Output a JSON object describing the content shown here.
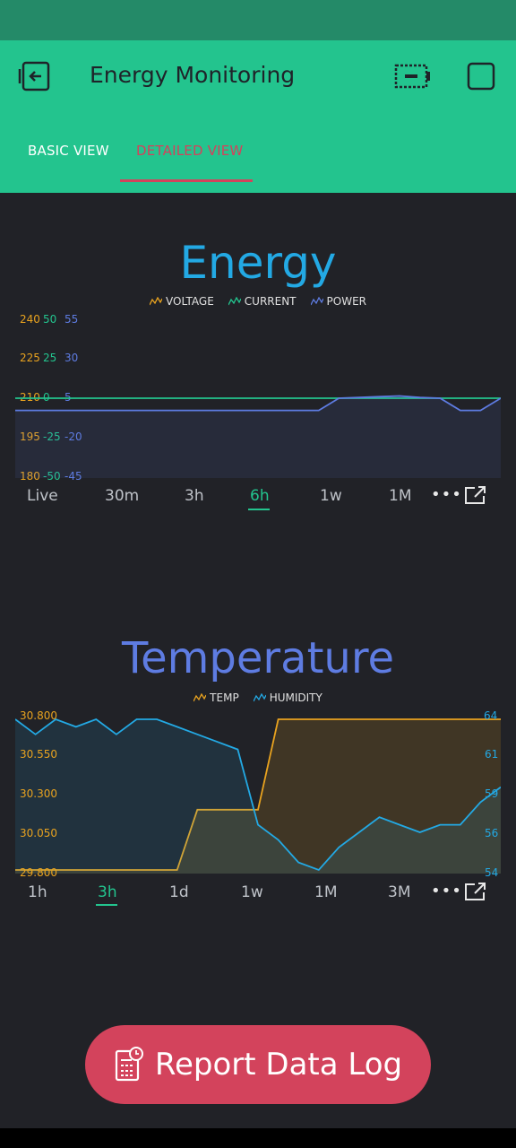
{
  "header": {
    "title": "Energy Monitoring",
    "tabs": [
      {
        "label": "BASIC VIEW",
        "active": false
      },
      {
        "label": "DETAILED VIEW",
        "active": true
      }
    ]
  },
  "colors": {
    "appbar": "#23c48e",
    "statusbar": "#248a68",
    "background": "#212227",
    "accent_red": "#d3435c",
    "voltage": "#e9a31f",
    "current": "#23c48e",
    "power": "#5e7ce2",
    "temp": "#e9a31f",
    "humidity": "#23a9e4"
  },
  "energy": {
    "title": "Energy",
    "legend": [
      "VOLTAGE",
      "CURRENT",
      "POWER"
    ],
    "ranges": [
      "Live",
      "30m",
      "3h",
      "6h",
      "1w",
      "1M"
    ],
    "active_range": "6h"
  },
  "temperature": {
    "title": "Temperature",
    "legend": [
      "TEMP",
      "HUMIDITY"
    ],
    "ranges": [
      "1h",
      "3h",
      "1d",
      "1w",
      "1M",
      "3M"
    ],
    "active_range": "3h"
  },
  "chart_data": [
    {
      "type": "line",
      "title": "Energy",
      "axes": {
        "voltage": {
          "ticks": [
            "240",
            "225",
            "210",
            "195",
            "180"
          ],
          "ylim": [
            180,
            240
          ]
        },
        "current": {
          "ticks": [
            "50",
            "25",
            "0",
            "-25",
            "-50"
          ],
          "ylim": [
            -50,
            50
          ]
        },
        "power": {
          "ticks": [
            "55",
            "30",
            "5",
            "-20",
            "-45"
          ],
          "ylim": [
            -45,
            55
          ]
        }
      },
      "series": [
        {
          "name": "VOLTAGE",
          "color": "#e9a31f",
          "values": [
            0,
            0,
            0,
            0,
            0,
            0,
            0,
            0,
            0,
            0,
            0,
            0,
            0,
            0,
            0,
            0,
            0,
            0,
            0,
            0,
            0,
            0,
            0,
            0,
            0
          ]
        },
        {
          "name": "CURRENT",
          "color": "#23c48e",
          "values": [
            0,
            0,
            0,
            0,
            0,
            0,
            0,
            0,
            0,
            0,
            0,
            0,
            0,
            0,
            0,
            0,
            0,
            0,
            0,
            0,
            0,
            0,
            0,
            0,
            0
          ]
        },
        {
          "name": "POWER",
          "color": "#5e7ce2",
          "values": [
            -3,
            -3,
            -3,
            -3,
            -3,
            -3,
            -3,
            -3,
            -3,
            -3,
            -3,
            -3,
            -3,
            -3,
            -3,
            -3,
            5,
            5.5,
            6,
            6.5,
            5.5,
            5,
            -3,
            -3,
            5
          ]
        }
      ]
    },
    {
      "type": "line",
      "title": "Temperature",
      "axes": {
        "temp": {
          "ticks": [
            "30.800",
            "30.550",
            "30.300",
            "30.050",
            "29.800"
          ],
          "ylim": [
            29.8,
            30.8
          ]
        },
        "humidity": {
          "ticks": [
            "64",
            "61",
            "59",
            "56",
            "54"
          ],
          "ylim": [
            54,
            64
          ]
        }
      },
      "series": [
        {
          "name": "TEMP",
          "color": "#e9a31f",
          "values": [
            29.8,
            29.8,
            29.8,
            29.8,
            29.8,
            29.8,
            29.8,
            29.8,
            29.8,
            30.2,
            30.2,
            30.2,
            30.2,
            30.8,
            30.8,
            30.8,
            30.8,
            30.8,
            30.8,
            30.8,
            30.8,
            30.8,
            30.8,
            30.8,
            30.8
          ]
        },
        {
          "name": "HUMIDITY",
          "color": "#23a9e4",
          "values": [
            64,
            63,
            64,
            63.5,
            64,
            63,
            64,
            64,
            63.5,
            63,
            62.5,
            62,
            57,
            56,
            54.5,
            54,
            55.5,
            56.5,
            57.5,
            57,
            56.5,
            57,
            57,
            58.5,
            59.5
          ]
        }
      ]
    }
  ],
  "report_button": {
    "label": "Report Data Log"
  },
  "icons": [
    "back-icon",
    "battery-icon",
    "square-icon",
    "more-icon",
    "export-icon",
    "report-icon"
  ]
}
